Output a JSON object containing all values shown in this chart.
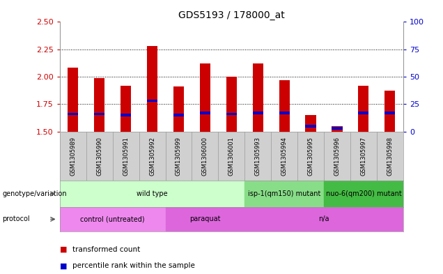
{
  "title": "GDS5193 / 178000_at",
  "samples": [
    "GSM1305989",
    "GSM1305990",
    "GSM1305991",
    "GSM1305992",
    "GSM1305999",
    "GSM1306000",
    "GSM1306001",
    "GSM1305993",
    "GSM1305994",
    "GSM1305995",
    "GSM1305996",
    "GSM1305997",
    "GSM1305998"
  ],
  "red_values": [
    2.08,
    1.99,
    1.92,
    2.28,
    1.91,
    2.12,
    2.0,
    2.12,
    1.97,
    1.65,
    1.55,
    1.92,
    1.87
  ],
  "blue_values": [
    1.66,
    1.66,
    1.65,
    1.78,
    1.65,
    1.67,
    1.66,
    1.67,
    1.67,
    1.55,
    1.53,
    1.67,
    1.67
  ],
  "ylim_left": [
    1.5,
    2.5
  ],
  "yticks_left": [
    1.5,
    1.75,
    2.0,
    2.25,
    2.5
  ],
  "ylim_right": [
    0,
    100
  ],
  "yticks_right": [
    0,
    25,
    50,
    75,
    100
  ],
  "bar_bottom": 1.5,
  "red_color": "#cc0000",
  "blue_color": "#0000cc",
  "genotype_labels": [
    {
      "label": "wild type",
      "start": 0,
      "end": 7,
      "color": "#ccffcc"
    },
    {
      "label": "isp-1(qm150) mutant",
      "start": 7,
      "end": 10,
      "color": "#88dd88"
    },
    {
      "label": "nuo-6(qm200) mutant",
      "start": 10,
      "end": 13,
      "color": "#44bb44"
    }
  ],
  "protocol_labels": [
    {
      "label": "control (untreated)",
      "start": 0,
      "end": 4,
      "color": "#ee88ee"
    },
    {
      "label": "paraquat",
      "start": 4,
      "end": 7,
      "color": "#dd66dd"
    },
    {
      "label": "n/a",
      "start": 7,
      "end": 13,
      "color": "#dd66dd"
    }
  ],
  "legend_red": "transformed count",
  "legend_blue": "percentile rank within the sample"
}
